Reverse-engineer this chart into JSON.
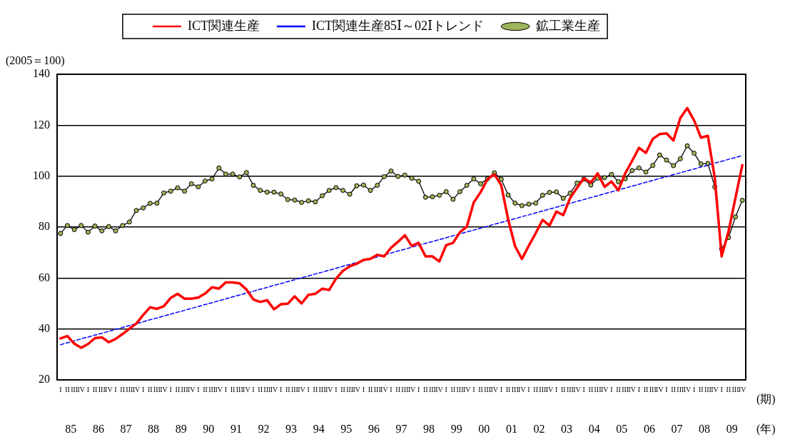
{
  "chart_data": {
    "type": "line",
    "ylabel": "(2005＝100)",
    "categories": [
      "I",
      "II",
      "III",
      "IV",
      "I",
      "II",
      "III",
      "IV",
      "I",
      "II",
      "III",
      "IV",
      "I",
      "II",
      "III",
      "IV",
      "I",
      "II",
      "III",
      "IV",
      "I",
      "II",
      "III",
      "IV",
      "I",
      "II",
      "III",
      "IV",
      "I",
      "II",
      "III",
      "IV",
      "I",
      "II",
      "III",
      "IV",
      "I",
      "II",
      "III",
      "IV",
      "I",
      "II",
      "III",
      "IV",
      "I",
      "II",
      "III",
      "IV",
      "I",
      "II",
      "III",
      "IV",
      "I",
      "II",
      "III",
      "IV",
      "I",
      "II",
      "III",
      "IV",
      "I",
      "II",
      "III",
      "IV",
      "I",
      "II",
      "III",
      "IV",
      "I",
      "II",
      "III",
      "IV",
      "I",
      "II",
      "III",
      "IV",
      "I",
      "II",
      "III",
      "IV",
      "I",
      "II",
      "III",
      "IV",
      "I",
      "II",
      "III",
      "IV",
      "I",
      "II",
      "III",
      "IV",
      "I",
      "II",
      "III",
      "IV",
      "I",
      "II",
      "III",
      "IV"
    ],
    "series": [
      {
        "name": "ICT関連生産",
        "color": "#ff0000",
        "marker": "none",
        "line_style": "solid",
        "values": [
          36.3,
          37.2,
          34.2,
          32.6,
          34.1,
          36.4,
          36.7,
          34.8,
          36.1,
          38.0,
          40.1,
          42.1,
          45.5,
          48.5,
          47.9,
          48.9,
          52.2,
          53.8,
          51.9,
          51.9,
          52.3,
          53.9,
          56.4,
          55.8,
          58.3,
          58.3,
          57.9,
          55.5,
          51.6,
          50.6,
          51.3,
          47.7,
          49.7,
          49.9,
          52.8,
          50.0,
          53.4,
          53.8,
          55.8,
          55.3,
          59.7,
          62.8,
          64.6,
          65.6,
          67.1,
          67.5,
          69.1,
          68.5,
          71.9,
          74.2,
          76.8,
          72.6,
          73.8,
          68.5,
          68.5,
          66.5,
          72.9,
          73.8,
          78.0,
          80.2,
          89.7,
          93.7,
          98.8,
          100.7,
          96.4,
          83.0,
          72.5,
          67.5,
          72.7,
          77.6,
          82.8,
          80.6,
          86.1,
          84.7,
          91.4,
          95.4,
          99.1,
          97.5,
          101.1,
          95.8,
          97.9,
          94.4,
          101.1,
          106.0,
          111.1,
          109.1,
          114.6,
          116.5,
          116.8,
          114.0,
          122.8,
          126.7,
          121.9,
          115.1,
          115.8,
          99.4,
          68.5,
          78.3,
          91.4,
          104.3
        ]
      },
      {
        "name": "ICT関連生産85Ⅰ～02Ⅰトレンド",
        "color": "#0000ff",
        "marker": "none",
        "line_style": "dashed",
        "values": [
          33.8,
          34.6,
          35.3,
          36.1,
          36.8,
          37.6,
          38.3,
          39.1,
          39.8,
          40.6,
          41.3,
          42.1,
          42.8,
          43.6,
          44.3,
          45.1,
          45.8,
          46.6,
          47.3,
          48.1,
          48.8,
          49.6,
          50.3,
          51.1,
          51.8,
          52.6,
          53.3,
          54.1,
          54.8,
          55.6,
          56.3,
          57.1,
          57.8,
          58.6,
          59.3,
          60.1,
          60.8,
          61.6,
          62.3,
          63.1,
          63.8,
          64.6,
          65.3,
          66.1,
          66.8,
          67.6,
          68.3,
          69.1,
          69.8,
          70.6,
          71.3,
          72.1,
          72.8,
          73.6,
          74.3,
          75.1,
          75.8,
          76.6,
          77.3,
          78.1,
          78.8,
          79.6,
          80.3,
          81.1,
          81.8,
          82.6,
          83.3,
          84.1,
          84.8,
          85.6,
          86.3,
          87.1,
          87.8,
          88.6,
          89.3,
          90.1,
          90.8,
          91.6,
          92.3,
          93.1,
          93.8,
          94.6,
          95.3,
          96.1,
          96.8,
          97.6,
          98.3,
          99.1,
          99.8,
          100.6,
          101.3,
          102.1,
          102.8,
          103.6,
          104.3,
          105.1,
          105.8,
          106.6,
          107.3,
          108.1
        ]
      },
      {
        "name": "鉱工業生産",
        "color": "#000000",
        "marker": "circle",
        "line_style": "solid",
        "values": [
          77.5,
          80.6,
          79.0,
          80.6,
          78.0,
          80.4,
          78.5,
          80.2,
          78.5,
          80.6,
          82.0,
          86.5,
          87.5,
          89.3,
          89.4,
          93.4,
          94.1,
          95.4,
          94.1,
          97.0,
          95.8,
          98.1,
          98.9,
          103.2,
          100.8,
          100.8,
          99.7,
          101.4,
          96.4,
          94.4,
          93.7,
          93.7,
          93.0,
          90.8,
          90.6,
          89.7,
          90.3,
          89.9,
          92.3,
          94.4,
          95.5,
          94.4,
          92.9,
          96.2,
          96.5,
          94.4,
          96.4,
          99.8,
          102.0,
          99.9,
          100.4,
          99.2,
          98.0,
          91.7,
          91.9,
          92.5,
          93.9,
          90.9,
          93.9,
          96.4,
          98.9,
          97.0,
          99.0,
          101.3,
          98.8,
          92.6,
          89.4,
          88.4,
          89.0,
          89.4,
          92.5,
          93.6,
          93.8,
          91.3,
          93.3,
          97.3,
          98.8,
          96.5,
          99.2,
          99.4,
          100.7,
          97.8,
          99.0,
          102.2,
          103.2,
          101.6,
          104.2,
          108.3,
          106.3,
          104.1,
          106.8,
          111.9,
          109.0,
          104.8,
          105.0,
          95.8,
          71.4,
          75.9,
          84.0,
          90.5
        ]
      }
    ],
    "ylim": [
      20,
      140
    ],
    "yticks": [
      20,
      40,
      60,
      80,
      100,
      120,
      140
    ],
    "grid": "y",
    "legend": "top",
    "annotations": [
      "85",
      "86",
      "87",
      "88",
      "89",
      "90",
      "91",
      "92",
      "93",
      "94",
      "95",
      "96",
      "97",
      "98",
      "99",
      "00",
      "01",
      "02",
      "03",
      "04",
      "05",
      "06",
      "07",
      "08",
      "09",
      "(期)",
      "(年)"
    ]
  }
}
